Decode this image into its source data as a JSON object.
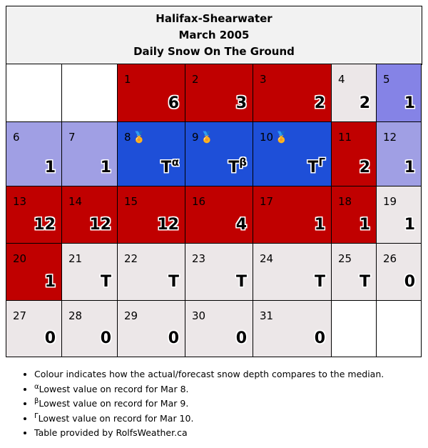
{
  "header": {
    "station": "Halifax-Shearwater",
    "month": "March 2005",
    "subtitle": "Daily Snow On The Ground"
  },
  "medal_icon": "🏅",
  "colors": {
    "red": "#c00000",
    "grey": "#ece7e8",
    "lavender": "#a09fe4",
    "periwinkle": "#8583e6",
    "blue": "#1e4fd8",
    "empty": "#ffffff"
  },
  "weeks": [
    [
      {
        "empty": true
      },
      {
        "empty": true
      },
      {
        "day": "1",
        "value": "6",
        "color": "red"
      },
      {
        "day": "2",
        "value": "3",
        "color": "red"
      },
      {
        "day": "3",
        "value": "2",
        "color": "red"
      },
      {
        "day": "4",
        "value": "2",
        "color": "grey"
      },
      {
        "day": "5",
        "value": "1",
        "color": "periwinkle"
      }
    ],
    [
      {
        "day": "6",
        "value": "1",
        "color": "lavender"
      },
      {
        "day": "7",
        "value": "1",
        "color": "lavender"
      },
      {
        "day": "8",
        "value": "T",
        "sup": "α",
        "medal": true,
        "color": "blue"
      },
      {
        "day": "9",
        "value": "T",
        "sup": "β",
        "medal": true,
        "color": "blue"
      },
      {
        "day": "10",
        "value": "T",
        "sup": "Γ",
        "medal": true,
        "color": "blue"
      },
      {
        "day": "11",
        "value": "2",
        "color": "red"
      },
      {
        "day": "12",
        "value": "1",
        "color": "lavender"
      }
    ],
    [
      {
        "day": "13",
        "value": "12",
        "color": "red"
      },
      {
        "day": "14",
        "value": "12",
        "color": "red"
      },
      {
        "day": "15",
        "value": "12",
        "color": "red"
      },
      {
        "day": "16",
        "value": "4",
        "color": "red"
      },
      {
        "day": "17",
        "value": "1",
        "color": "red"
      },
      {
        "day": "18",
        "value": "1",
        "color": "red"
      },
      {
        "day": "19",
        "value": "1",
        "color": "grey"
      }
    ],
    [
      {
        "day": "20",
        "value": "1",
        "color": "red"
      },
      {
        "day": "21",
        "value": "T",
        "color": "grey"
      },
      {
        "day": "22",
        "value": "T",
        "color": "grey"
      },
      {
        "day": "23",
        "value": "T",
        "color": "grey"
      },
      {
        "day": "24",
        "value": "T",
        "color": "grey"
      },
      {
        "day": "25",
        "value": "T",
        "color": "grey"
      },
      {
        "day": "26",
        "value": "0",
        "color": "grey"
      }
    ],
    [
      {
        "day": "27",
        "value": "0",
        "color": "grey"
      },
      {
        "day": "28",
        "value": "0",
        "color": "grey"
      },
      {
        "day": "29",
        "value": "0",
        "color": "grey"
      },
      {
        "day": "30",
        "value": "0",
        "color": "grey"
      },
      {
        "day": "31",
        "value": "0",
        "color": "grey"
      },
      {
        "empty": true
      },
      {
        "empty": true
      }
    ]
  ],
  "notes": [
    {
      "sup": "",
      "text": "Colour indicates how the actual/forecast snow depth compares to the median."
    },
    {
      "sup": "α",
      "text": "Lowest value on record for Mar 8."
    },
    {
      "sup": "β",
      "text": "Lowest value on record for Mar 9."
    },
    {
      "sup": "Γ",
      "text": "Lowest value on record for Mar 10."
    },
    {
      "sup": "",
      "text": "Table provided by RolfsWeather.ca"
    }
  ]
}
